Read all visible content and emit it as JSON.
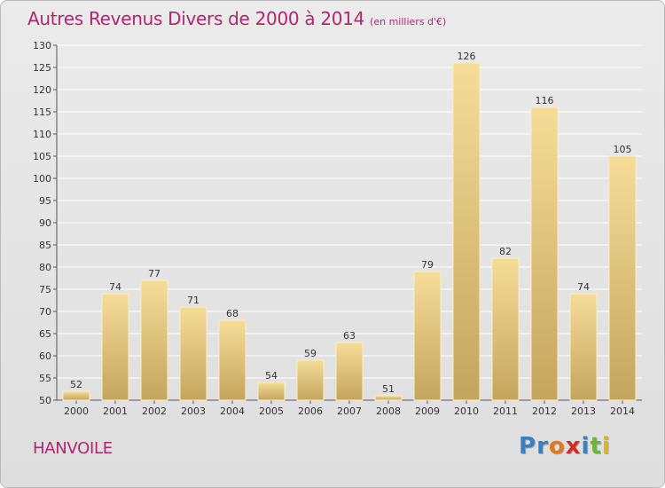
{
  "header": {
    "title": "Autres Revenus Divers de 2000 à 2014",
    "unit": "(en milliers d'€)"
  },
  "footer": {
    "location": "HANVOILE",
    "brand_letters": [
      {
        "char": "P",
        "color": "#3a7fc4"
      },
      {
        "char": "r",
        "color": "#3a7fc4"
      },
      {
        "char": "o",
        "color": "#e07a1f"
      },
      {
        "char": "x",
        "color": "#d62a2a"
      },
      {
        "char": "i",
        "color": "#3a7fc4"
      },
      {
        "char": "t",
        "color": "#6cb33f"
      },
      {
        "char": "i",
        "color": "#e0b21f"
      }
    ]
  },
  "colors": {
    "title": "#b0266a",
    "bar_light": "#f5dd98",
    "bar_dark": "#c4a55e",
    "grid": "#ffffff",
    "axis": "#555555"
  },
  "chart_data": {
    "type": "bar",
    "title": "Autres Revenus Divers de 2000 à 2014",
    "subtitle": "(en milliers d'€)",
    "xlabel": "",
    "ylabel": "",
    "ylim": [
      50,
      130
    ],
    "ytick_step": 5,
    "grid": "horizontal",
    "categories": [
      "2000",
      "2001",
      "2002",
      "2003",
      "2004",
      "2005",
      "2006",
      "2007",
      "2008",
      "2009",
      "2010",
      "2011",
      "2012",
      "2013",
      "2014"
    ],
    "values": [
      52,
      74,
      77,
      71,
      68,
      54,
      59,
      63,
      51,
      79,
      126,
      82,
      116,
      74,
      105
    ]
  }
}
